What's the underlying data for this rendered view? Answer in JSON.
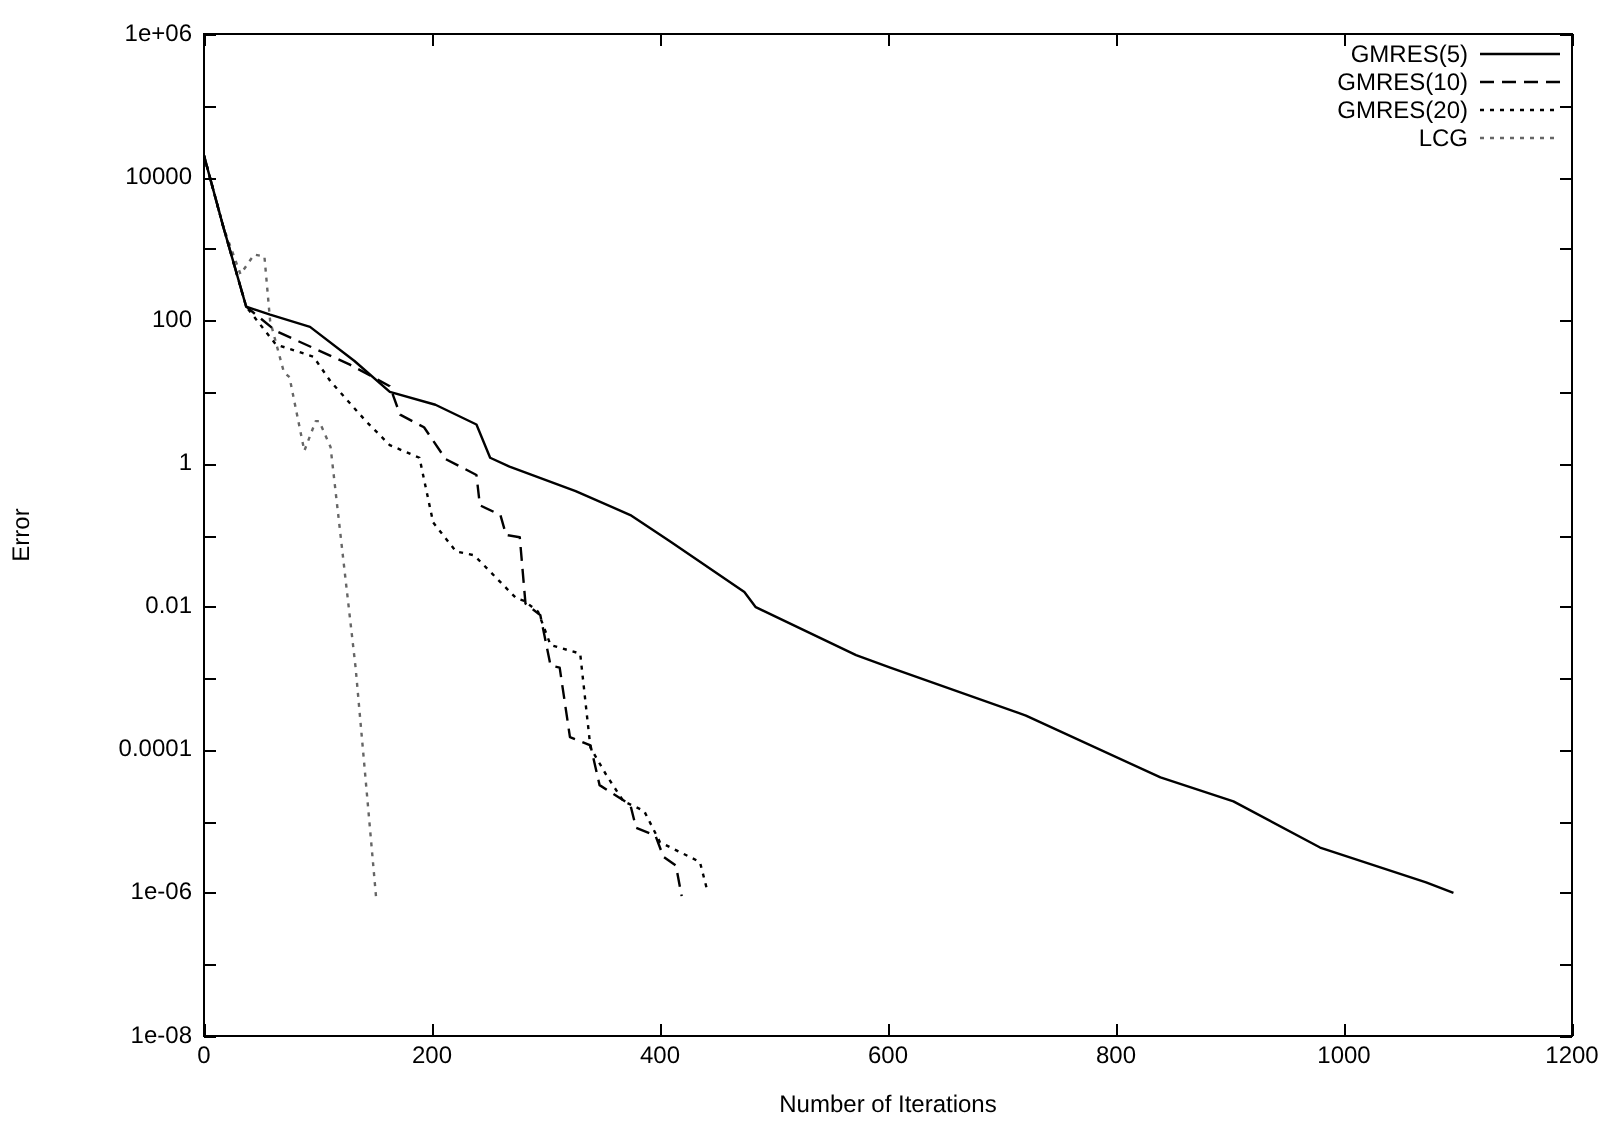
{
  "chart_data": {
    "type": "line",
    "xlabel": "Number of Iterations",
    "ylabel": "Error",
    "log": "y",
    "grid": false,
    "legend": "top right",
    "marker": "none",
    "xlim": [
      0,
      1200
    ],
    "xticks": [
      0,
      200,
      400,
      600,
      800,
      1000,
      1200
    ],
    "ylim": [
      1e-08,
      1000000
    ],
    "yticks": [
      {
        "value": 1000000,
        "label": "1e+06"
      },
      {
        "value": 100000,
        "label": null
      },
      10000,
      {
        "value": 1000,
        "label": null
      },
      100,
      {
        "value": 10,
        "label": null
      },
      1,
      {
        "value": 0.1,
        "label": null
      },
      0.01,
      {
        "value": 0.001,
        "label": null
      },
      0.0001,
      {
        "value": 1e-05,
        "label": null
      },
      {
        "value": 1e-06,
        "label": "1e-06"
      },
      {
        "value": 1e-07,
        "label": null
      },
      {
        "value": 1e-08,
        "label": "1e-08"
      }
    ],
    "series": [
      {
        "name": "GMRES(5)",
        "color": "#000000",
        "line_style": "solid",
        "x": [
          0,
          17,
          37,
          58,
          93,
          132,
          163,
          203,
          239,
          251,
          268,
          326,
          374,
          409,
          474,
          484,
          572,
          602,
          721,
          839,
          903,
          979,
          1072,
          1096
        ],
        "values": [
          20000,
          2000,
          155,
          120,
          81,
          27,
          10,
          6.6,
          3.5,
          1.2,
          0.9,
          0.41,
          0.19,
          0.081,
          0.016,
          0.0098,
          0.0021,
          0.0014,
          0.0003,
          4.1e-05,
          1.9e-05,
          4.3e-06,
          1.4e-06,
          1e-06
        ]
      },
      {
        "name": "GMRES(10)",
        "color": "#000000",
        "line_style": "dashed",
        "x": [
          0,
          17,
          37,
          63,
          128,
          163,
          172,
          193,
          212,
          239,
          242,
          260,
          265,
          277,
          282,
          295,
          304,
          312,
          321,
          339,
          347,
          374,
          379,
          396,
          403,
          414,
          419
        ],
        "values": [
          20000,
          2000,
          155,
          71,
          24,
          12,
          4.8,
          3.2,
          1.15,
          0.69,
          0.26,
          0.19,
          0.1,
          0.093,
          0.011,
          0.0076,
          0.0015,
          0.0014,
          0.00015,
          0.000115,
          3.2e-05,
          1.7e-05,
          8.1e-06,
          6.3e-06,
          3.2e-06,
          2.4e-06,
          9e-07
        ]
      },
      {
        "name": "GMRES(20)",
        "color": "#000000",
        "line_style": "dotted",
        "x": [
          0,
          17,
          37,
          63,
          96,
          111,
          142,
          163,
          189,
          201,
          221,
          237,
          274,
          281,
          293,
          304,
          330,
          339,
          353,
          368,
          386,
          400,
          435,
          442
        ],
        "values": [
          20000,
          2000,
          155,
          46,
          31,
          14,
          3.9,
          1.8,
          1.2,
          0.15,
          0.059,
          0.052,
          0.013,
          0.012,
          0.0085,
          0.0029,
          0.0022,
          0.000107,
          4.4e-05,
          1.9e-05,
          1.4e-05,
          5.1e-06,
          2.7e-06,
          1e-06
        ]
      },
      {
        "name": "LCG",
        "color": "#666666",
        "line_style": "dotted",
        "x": [
          0,
          17,
          32,
          44,
          53,
          58,
          70,
          75,
          88,
          98,
          101,
          111,
          123,
          133,
          142,
          151
        ],
        "values": [
          20000,
          2000,
          440,
          830,
          780,
          98,
          19,
          16,
          1.5,
          3.9,
          3.9,
          1.7,
          0.035,
          0.0014,
          3.5e-05,
          8.5e-07
        ]
      }
    ]
  }
}
